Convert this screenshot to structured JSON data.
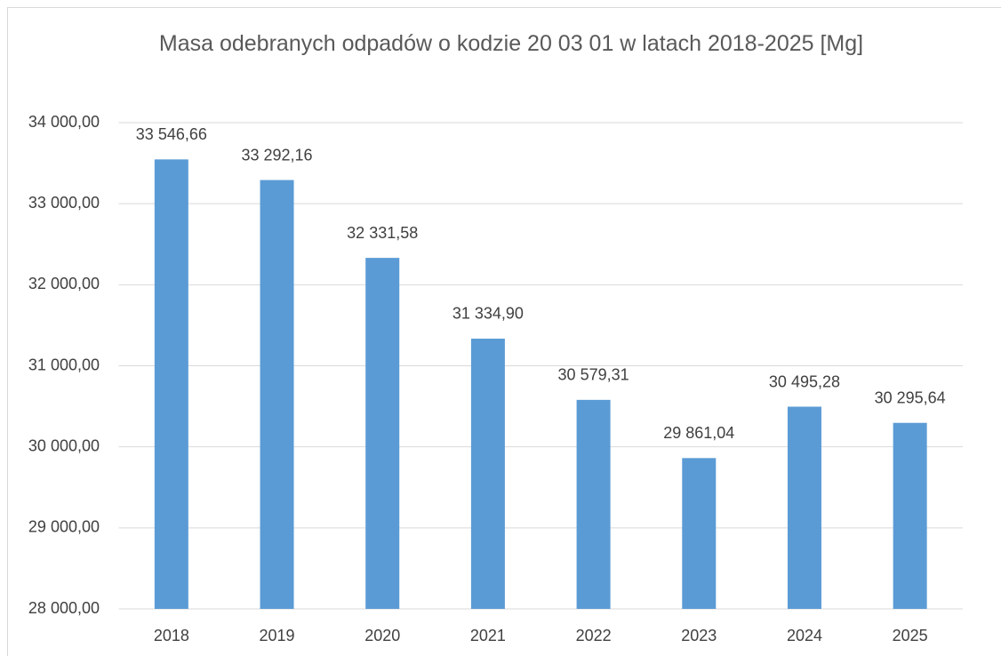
{
  "chart_data": {
    "type": "bar",
    "title": "Masa odebranych odpadów o kodzie 20 03 01 w latach 2018-2025 [Mg]",
    "categories": [
      "2018",
      "2019",
      "2020",
      "2021",
      "2022",
      "2023",
      "2024",
      "2025"
    ],
    "values": [
      33546.66,
      33292.16,
      32331.58,
      31334.9,
      30579.31,
      29861.04,
      30495.28,
      30295.64
    ],
    "value_labels": [
      "33 546,66",
      "33 292,16",
      "32 331,58",
      "31 334,90",
      "30 579,31",
      "29 861,04",
      "30 495,28",
      "30 295,64"
    ],
    "color": "#5b9bd5",
    "ylim": [
      28000,
      34000
    ],
    "yticks": [
      {
        "value": 28000,
        "label": "28 000,00"
      },
      {
        "value": 29000,
        "label": "29 000,00"
      },
      {
        "value": 30000,
        "label": "30 000,00"
      },
      {
        "value": 31000,
        "label": "31 000,00"
      },
      {
        "value": 32000,
        "label": "32 000,00"
      },
      {
        "value": 33000,
        "label": "33 000,00"
      },
      {
        "value": 34000,
        "label": "34 000,00"
      }
    ],
    "grid": true
  }
}
